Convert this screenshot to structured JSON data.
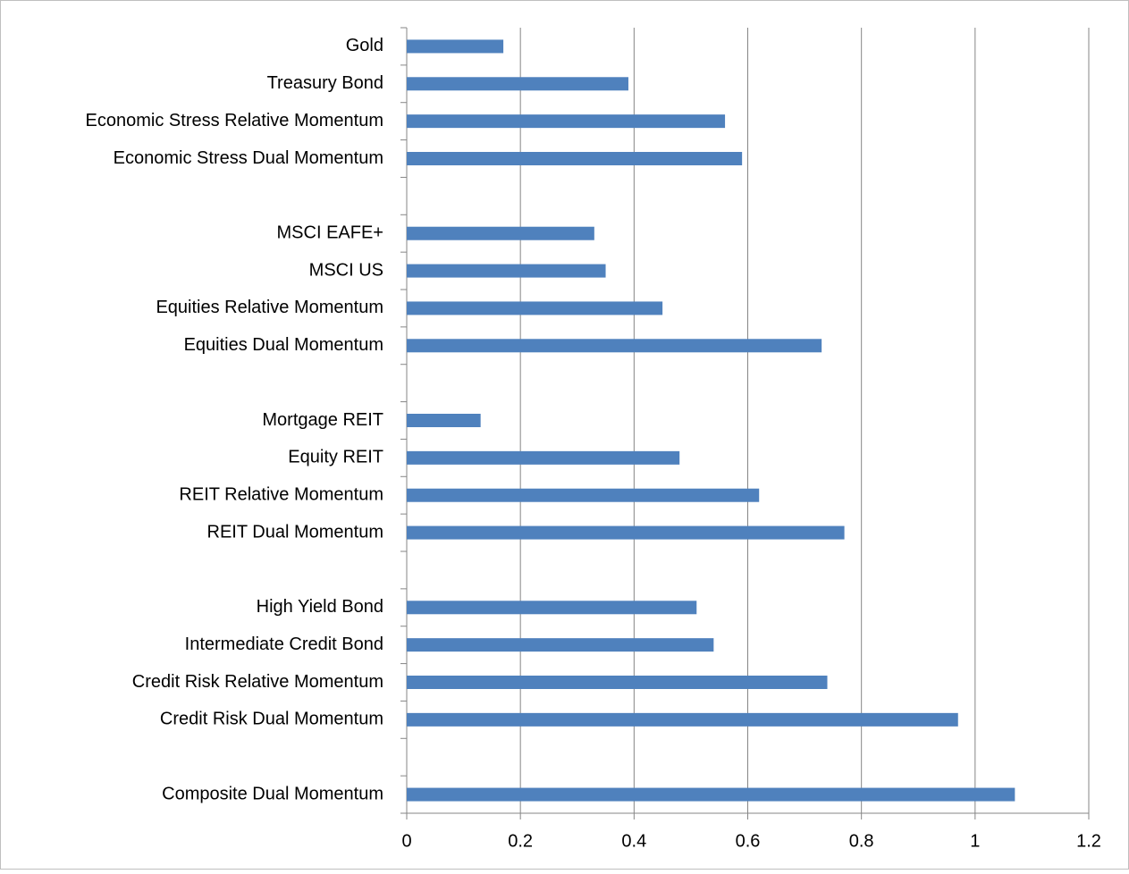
{
  "chart_data": {
    "type": "bar",
    "orientation": "horizontal",
    "categories": [
      "Gold",
      "Treasury Bond",
      "Economic Stress Relative Momentum",
      "Economic Stress Dual Momentum",
      null,
      "MSCI EAFE+",
      "MSCI US",
      "Equities Relative Momentum",
      "Equities Dual Momentum",
      null,
      "Mortgage REIT",
      "Equity REIT",
      "REIT Relative Momentum",
      "REIT Dual Momentum",
      null,
      "High Yield Bond",
      "Intermediate Credit Bond",
      "Credit Risk Relative Momentum",
      "Credit Risk Dual Momentum",
      null,
      "Composite Dual Momentum"
    ],
    "values": [
      0.17,
      0.39,
      0.56,
      0.59,
      null,
      0.33,
      0.35,
      0.45,
      0.73,
      null,
      0.13,
      0.48,
      0.62,
      0.77,
      null,
      0.51,
      0.54,
      0.74,
      0.97,
      null,
      1.07
    ],
    "color": "#4f81bd",
    "xlim": [
      0,
      1.2
    ],
    "xticks": [
      0,
      0.2,
      0.4,
      0.6,
      0.8,
      1,
      1.2
    ],
    "grid": true
  }
}
